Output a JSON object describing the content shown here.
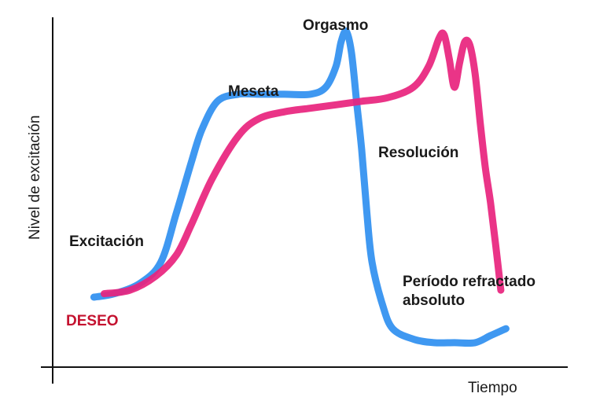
{
  "chart_data": {
    "type": "line",
    "xlabel": "Tiempo",
    "ylabel": "Nivel de excitación",
    "grid": false,
    "legend": "none",
    "xlim": [
      0,
      100
    ],
    "ylim": [
      0,
      100
    ],
    "series": [
      {
        "color": "#2f8ff0",
        "x": [
          8,
          12,
          17,
          21,
          24,
          27,
          29,
          32,
          36,
          40,
          45,
          50,
          53,
          55,
          56,
          57,
          58,
          59,
          60,
          61,
          62,
          64,
          66,
          70,
          74,
          78,
          82,
          85,
          88
        ],
        "y": [
          20,
          21,
          24,
          30,
          44,
          59,
          68,
          76,
          78,
          78,
          78,
          78,
          80,
          86,
          93,
          96,
          90,
          76,
          62,
          44,
          30,
          18,
          11,
          8,
          7,
          7,
          7,
          9,
          11
        ]
      },
      {
        "color": "#e8237d",
        "x": [
          10,
          15,
          20,
          24,
          27,
          31,
          36,
          40,
          45,
          50,
          55,
          60,
          65,
          70,
          73,
          75,
          76,
          77,
          78,
          79,
          80,
          81,
          82,
          83,
          84,
          85,
          86,
          87
        ],
        "y": [
          21,
          22,
          26,
          32,
          41,
          54,
          66,
          71,
          73,
          74,
          75,
          76,
          77,
          80,
          86,
          94,
          95,
          88,
          80,
          87,
          93,
          92,
          84,
          70,
          57,
          47,
          35,
          22
        ]
      }
    ],
    "annotations": [
      {
        "text": "Orgasmo",
        "color": "#1a1a1a"
      },
      {
        "text": "Meseta",
        "color": "#1a1a1a"
      },
      {
        "text": "Resolución",
        "color": "#1a1a1a"
      },
      {
        "text": "Excitación",
        "color": "#1a1a1a"
      },
      {
        "text": "Período refractado",
        "color": "#1a1a1a"
      },
      {
        "text": "absoluto",
        "color": "#1a1a1a"
      },
      {
        "text": "DESEO",
        "color": "#c4122f"
      }
    ]
  }
}
